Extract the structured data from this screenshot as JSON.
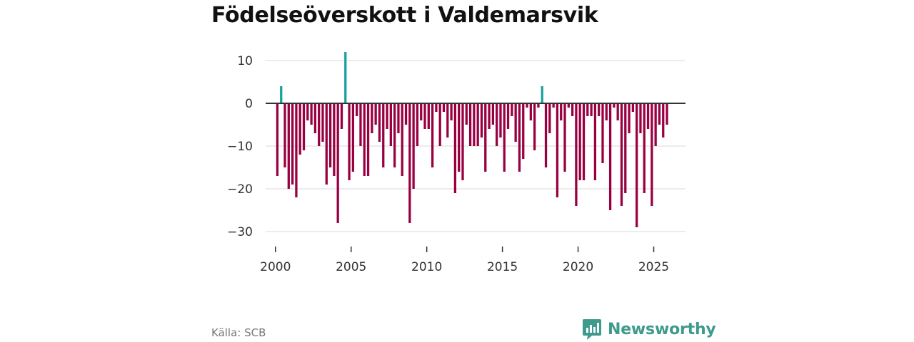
{
  "title": "Födelseöverskott i Valdemarsvik",
  "source": "Källa: SCB",
  "brand": {
    "name": "Newsworthy",
    "color": "#3d9a8c"
  },
  "colors": {
    "positive": "#17a2a0",
    "negative": "#990042",
    "grid": "#d9d9d9",
    "zero": "#333333"
  },
  "chart_data": {
    "type": "bar",
    "title": "Födelseöverskott i Valdemarsvik",
    "xlabel": "",
    "ylabel": "",
    "ylim": [
      -33,
      12
    ],
    "yticks": [
      10,
      0,
      -10,
      -20,
      -30
    ],
    "ytick_labels": [
      "10",
      "0",
      "−10",
      "−20",
      "−30"
    ],
    "xlim": [
      1999.35,
      2027.1
    ],
    "xticks": [
      2000,
      2005,
      2010,
      2015,
      2020,
      2025
    ],
    "xtick_labels": [
      "2000",
      "2005",
      "2010",
      "2015",
      "2020",
      "2025"
    ],
    "grid": true,
    "legend": "none",
    "x_start": 2000.125,
    "x_step": 0.25,
    "values": [
      -17,
      4,
      -15,
      -20,
      -19,
      -22,
      -12,
      -11,
      -4,
      -5,
      -7,
      -10,
      -9,
      -19,
      -15,
      -17,
      -28,
      -6,
      12,
      -18,
      -16,
      -3,
      -10,
      -17,
      -17,
      -7,
      -5,
      -9,
      -15,
      -6,
      -10,
      -15,
      -7,
      -17,
      -5,
      -28,
      -20,
      -10,
      -4,
      -6,
      -6,
      -15,
      -2,
      -10,
      -2,
      -8,
      -4,
      -21,
      -16,
      -18,
      -5,
      -10,
      -10,
      -10,
      -8,
      -16,
      -6,
      -5,
      -10,
      -8,
      -16,
      -6,
      -3,
      -9,
      -16,
      -13,
      -1,
      -4,
      -11,
      -1,
      4,
      -15,
      -7,
      -1,
      -22,
      -4,
      -16,
      -1,
      -3,
      -24,
      -18,
      -18,
      -3,
      -3,
      -18,
      -3,
      -14,
      -4,
      -25,
      -1,
      -4,
      -24,
      -21,
      -7,
      -2,
      -29,
      -7,
      -21,
      -6,
      -24,
      -10,
      -5,
      -8,
      -5
    ]
  }
}
